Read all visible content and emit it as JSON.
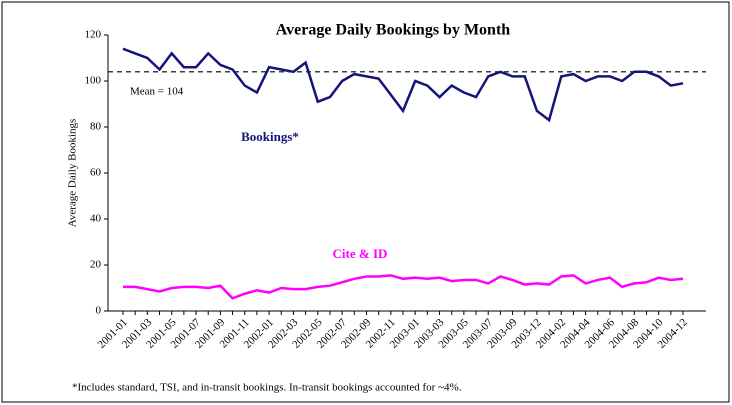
{
  "chart_data": {
    "type": "line",
    "title": "Average Daily Bookings by Month",
    "y_label": "Average Daily Bookings",
    "footnote": "*Includes standard, TSI, and in-transit bookings. In-transit bookings accounted for ~4%.",
    "mean": 104,
    "mean_label": "Mean = 104",
    "categories": [
      "2001-01",
      null,
      "2001-03",
      null,
      "2001-05",
      null,
      "2001-07",
      null,
      "2001-09",
      null,
      "2001-11",
      null,
      "2002-01",
      null,
      "2002-03",
      null,
      "2002-05",
      null,
      "2002-07",
      null,
      "2002-09",
      null,
      "2002-11",
      null,
      "2003-01",
      null,
      "2003-03",
      null,
      "2003-05",
      null,
      "2003-07",
      null,
      "2003-09",
      null,
      "2003-12",
      null,
      "2004-02",
      null,
      "2004-04",
      null,
      "2004-06",
      null,
      "2004-08",
      null,
      "2004-10",
      null,
      "2004-12"
    ],
    "series": [
      {
        "name": "Bookings*",
        "color": "#14147a",
        "values": [
          114,
          112,
          110,
          105,
          112,
          106,
          106,
          112,
          107,
          105,
          98,
          95,
          106,
          105,
          104,
          108,
          91,
          93,
          100,
          103,
          102,
          101,
          94,
          87,
          100,
          98,
          93,
          98,
          95,
          93,
          102,
          104,
          102,
          102,
          87,
          83,
          102,
          103,
          100,
          102,
          102,
          100,
          104,
          104,
          102,
          98,
          99
        ]
      },
      {
        "name": "Cite & ID",
        "color": "#ff00ff",
        "values": [
          10.5,
          10.5,
          9.5,
          8.5,
          10,
          10.5,
          10.5,
          10,
          11,
          5.5,
          7.5,
          9,
          8,
          10,
          9.5,
          9.5,
          10.5,
          11,
          12.5,
          14,
          15,
          15,
          15.5,
          14,
          14.5,
          14,
          14.5,
          13,
          13.5,
          13.5,
          12,
          15,
          13.5,
          11.5,
          12,
          11.5,
          15,
          15.5,
          12,
          13.5,
          14.5,
          10.5,
          12,
          12.5,
          14.5,
          13.5,
          14
        ]
      }
    ],
    "ylim": [
      0,
      120
    ],
    "yticks": [
      0,
      20,
      40,
      60,
      80,
      100,
      120
    ]
  }
}
